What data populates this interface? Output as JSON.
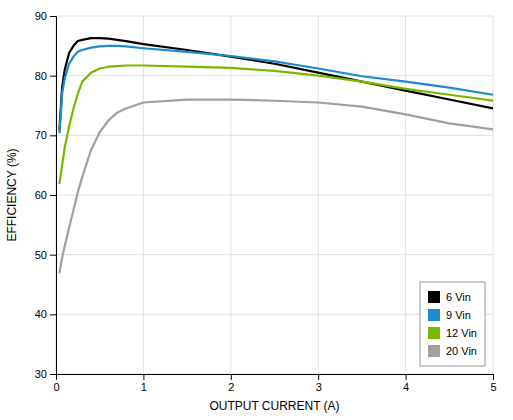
{
  "chart_data": {
    "type": "line",
    "xlabel": "OUTPUT CURRENT (A)",
    "ylabel": "EFFICIENCY (%)",
    "x": [
      0.04,
      0.07,
      0.1,
      0.15,
      0.2,
      0.25,
      0.3,
      0.4,
      0.5,
      0.6,
      0.7,
      0.8,
      1.0,
      1.5,
      2.0,
      2.5,
      3.0,
      3.5,
      4.0,
      4.5,
      5.0
    ],
    "series": [
      {
        "name": "6 Vin",
        "color": "#000000",
        "values": [
          71.0,
          78.0,
          81.0,
          83.8,
          85.0,
          85.8,
          86.0,
          86.3,
          86.3,
          86.2,
          86.0,
          85.8,
          85.3,
          84.3,
          83.2,
          82.0,
          80.5,
          79.0,
          77.5,
          76.0,
          74.5
        ]
      },
      {
        "name": "9 Vin",
        "color": "#1a8ccd",
        "values": [
          70.5,
          77.0,
          79.5,
          82.0,
          83.2,
          84.0,
          84.3,
          84.7,
          84.9,
          85.0,
          85.0,
          84.9,
          84.6,
          84.0,
          83.3,
          82.4,
          81.2,
          79.9,
          79.0,
          78.0,
          76.8
        ]
      },
      {
        "name": "12 Vin",
        "color": "#7ab800",
        "values": [
          62.0,
          65.0,
          68.0,
          71.5,
          74.5,
          77.0,
          79.0,
          80.5,
          81.2,
          81.5,
          81.6,
          81.7,
          81.7,
          81.5,
          81.3,
          80.8,
          80.0,
          79.0,
          77.8,
          76.8,
          75.8
        ]
      },
      {
        "name": "20 Vin",
        "color": "#a0a0a0",
        "values": [
          47.0,
          49.5,
          51.5,
          54.5,
          57.5,
          60.5,
          63.0,
          67.5,
          70.5,
          72.5,
          73.8,
          74.5,
          75.5,
          76.0,
          76.0,
          75.8,
          75.5,
          74.8,
          73.5,
          72.0,
          71.0
        ]
      }
    ],
    "xlim": [
      0,
      5
    ],
    "ylim": [
      30,
      90
    ],
    "xticks": [
      0,
      1,
      2,
      3,
      4,
      5
    ],
    "yticks": [
      30,
      40,
      50,
      60,
      70,
      80,
      90
    ],
    "grid": true,
    "legend": "lower-right"
  }
}
